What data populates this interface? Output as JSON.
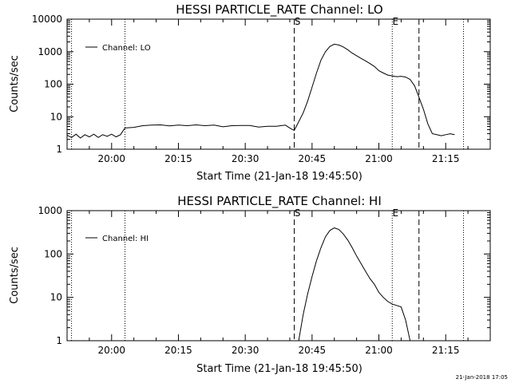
{
  "timestamp": "21-Jan-2018 17:05",
  "chart_data": [
    {
      "type": "line",
      "title": "HESSI PARTICLE_RATE Channel: LO",
      "xlabel": "Start Time (21-Jan-18 19:45:50)",
      "ylabel": "Counts/sec",
      "yscale": "log",
      "ylim": [
        1,
        10000
      ],
      "yticks": [
        "1",
        "10",
        "100",
        "1000",
        "10000"
      ],
      "xlim": [
        "19:50",
        "21:25"
      ],
      "xticks": [
        "20:00",
        "20:15",
        "20:30",
        "20:45",
        "21:00",
        "21:15"
      ],
      "legend": {
        "location": "top-left",
        "entries": [
          "Channel: LO"
        ]
      },
      "markers": [
        {
          "time": "20:41",
          "style": "dashed",
          "label": "S"
        },
        {
          "time": "21:09",
          "style": "dashed",
          "label": ""
        },
        {
          "time": "21:03",
          "style": "dotted",
          "label": "E"
        },
        {
          "time": "19:51",
          "style": "dotted",
          "label": ""
        },
        {
          "time": "20:03",
          "style": "dotted",
          "label": ""
        },
        {
          "time": "21:19",
          "style": "dotted",
          "label": ""
        }
      ],
      "series": [
        {
          "name": "Channel: LO",
          "x": [
            "19:50",
            "19:51",
            "19:52",
            "19:53",
            "19:54",
            "19:55",
            "19:56",
            "19:57",
            "19:58",
            "19:59",
            "20:00",
            "20:01",
            "20:02",
            "20:03",
            "20:05",
            "20:07",
            "20:09",
            "20:11",
            "20:13",
            "20:15",
            "20:17",
            "20:19",
            "20:21",
            "20:23",
            "20:25",
            "20:27",
            "20:29",
            "20:31",
            "20:33",
            "20:35",
            "20:37",
            "20:39",
            "20:40",
            "20:41",
            "20:42",
            "20:43",
            "20:44",
            "20:45",
            "20:46",
            "20:47",
            "20:48",
            "20:49",
            "20:50",
            "20:51",
            "20:52",
            "20:53",
            "20:54",
            "20:55",
            "20:56",
            "20:57",
            "20:58",
            "20:59",
            "21:00",
            "21:01",
            "21:02",
            "21:03",
            "21:04",
            "21:05",
            "21:06",
            "21:07",
            "21:08",
            "21:09",
            "21:10",
            "21:11",
            "21:12",
            "21:13",
            "21:14",
            "21:15",
            "21:16",
            "21:17"
          ],
          "values": [
            2.7,
            2.3,
            2.9,
            2.2,
            2.8,
            2.4,
            2.9,
            2.3,
            2.8,
            2.5,
            2.9,
            2.4,
            2.8,
            4.5,
            4.7,
            5.3,
            5.5,
            5.6,
            5.2,
            5.5,
            5.3,
            5.6,
            5.3,
            5.5,
            4.9,
            5.3,
            5.4,
            5.4,
            4.8,
            5.1,
            5.1,
            5.5,
            4.5,
            3.8,
            7,
            13,
            30,
            80,
            220,
            550,
            1000,
            1450,
            1700,
            1600,
            1400,
            1150,
            900,
            750,
            620,
            520,
            430,
            350,
            260,
            220,
            190,
            180,
            170,
            175,
            165,
            140,
            90,
            40,
            17,
            6,
            3,
            2.8,
            2.6,
            2.8,
            3,
            2.8
          ]
        }
      ]
    },
    {
      "type": "line",
      "title": "HESSI PARTICLE_RATE Channel: HI",
      "xlabel": "Start Time (21-Jan-18 19:45:50)",
      "ylabel": "Counts/sec",
      "yscale": "log",
      "ylim": [
        1,
        1000
      ],
      "yticks": [
        "1",
        "10",
        "100",
        "1000"
      ],
      "xlim": [
        "19:50",
        "21:25"
      ],
      "xticks": [
        "20:00",
        "20:15",
        "20:30",
        "20:45",
        "21:00",
        "21:15"
      ],
      "legend": {
        "location": "top-left",
        "entries": [
          "Channel: HI"
        ]
      },
      "markers": [
        {
          "time": "20:41",
          "style": "dashed",
          "label": "S"
        },
        {
          "time": "21:09",
          "style": "dashed",
          "label": ""
        },
        {
          "time": "21:03",
          "style": "dotted",
          "label": "E"
        },
        {
          "time": "19:51",
          "style": "dotted",
          "label": ""
        },
        {
          "time": "20:03",
          "style": "dotted",
          "label": ""
        },
        {
          "time": "21:19",
          "style": "dotted",
          "label": ""
        }
      ],
      "series": [
        {
          "name": "Channel: HI",
          "x": [
            "20:42",
            "20:43",
            "20:44",
            "20:45",
            "20:46",
            "20:47",
            "20:48",
            "20:49",
            "20:50",
            "20:51",
            "20:52",
            "20:53",
            "20:54",
            "20:55",
            "20:56",
            "20:57",
            "20:58",
            "20:59",
            "21:00",
            "21:01",
            "21:02",
            "21:03",
            "21:04",
            "21:05",
            "21:06",
            "21:07"
          ],
          "values": [
            1,
            4,
            12,
            30,
            70,
            140,
            250,
            350,
            400,
            370,
            290,
            210,
            140,
            90,
            60,
            40,
            27,
            20,
            13,
            10,
            8,
            7,
            6.5,
            6,
            3,
            1
          ]
        }
      ]
    }
  ]
}
